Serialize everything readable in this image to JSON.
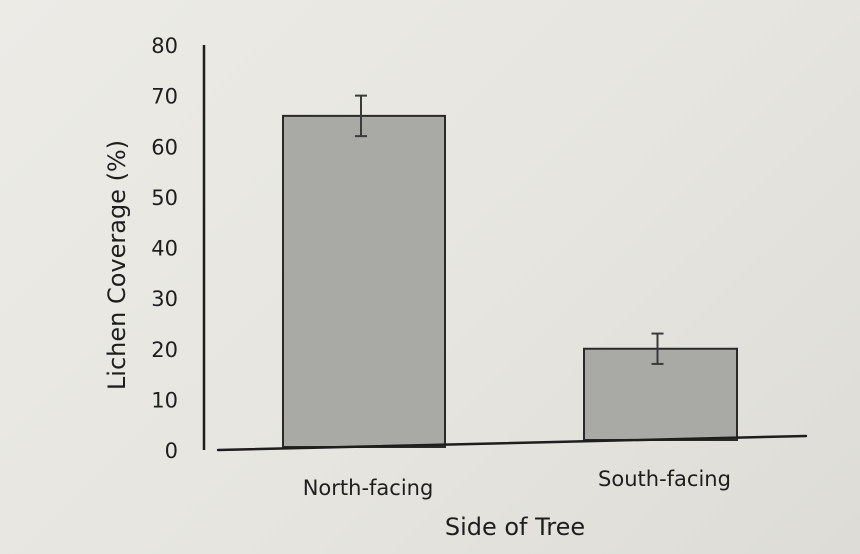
{
  "chart_data": {
    "type": "bar",
    "title": "",
    "xlabel": "Side of Tree",
    "ylabel": "Lichen Coverage (%)",
    "ylim": [
      0,
      80
    ],
    "yticks": [
      0,
      10,
      20,
      30,
      40,
      50,
      60,
      70,
      80
    ],
    "categories": [
      "North-facing",
      "South-facing"
    ],
    "values": [
      66,
      20
    ],
    "error_bars": [
      4,
      3
    ],
    "grid": false,
    "colors": {
      "bar_fill": "#a9aaa6",
      "bar_edge": "#2a2a2a",
      "axis": "#1e1e1e"
    }
  }
}
